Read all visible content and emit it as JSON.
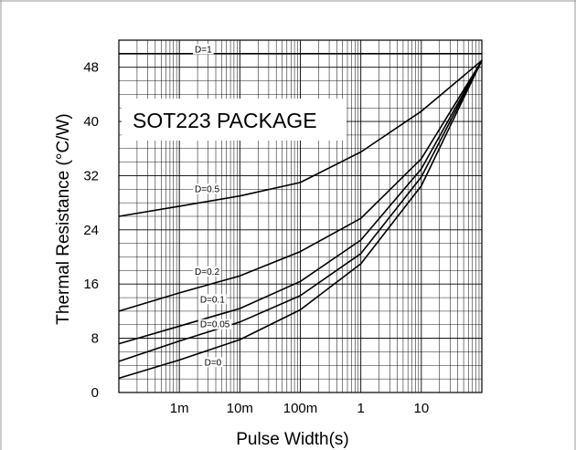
{
  "chart_data": {
    "type": "line",
    "title": "",
    "xlabel": "Pulse Width(s)",
    "ylabel": "Thermal Resistance (°C/W)",
    "x_scale": "log",
    "xlim": [
      0.0001,
      100
    ],
    "ylim": [
      0,
      52
    ],
    "grid": true,
    "annotation": "SOT223 PACKAGE",
    "x_ticks": [
      {
        "value": 0.001,
        "label": "1m"
      },
      {
        "value": 0.01,
        "label": "10m"
      },
      {
        "value": 0.1,
        "label": "100m"
      },
      {
        "value": 1,
        "label": "1"
      },
      {
        "value": 10,
        "label": "10"
      }
    ],
    "y_ticks": [
      {
        "value": 0,
        "label": "0"
      },
      {
        "value": 8,
        "label": "8"
      },
      {
        "value": 16,
        "label": "16"
      },
      {
        "value": 24,
        "label": "24"
      },
      {
        "value": 32,
        "label": "32"
      },
      {
        "value": 40,
        "label": "40"
      },
      {
        "value": 48,
        "label": "48"
      }
    ],
    "series": [
      {
        "name": "D=1",
        "x": [
          0.0001,
          100
        ],
        "y": [
          50,
          50
        ]
      },
      {
        "name": "D=0.5",
        "x": [
          0.0001,
          0.001,
          0.01,
          0.1,
          1,
          10,
          100
        ],
        "y": [
          26,
          27.5,
          29,
          31,
          35.5,
          41.5,
          49
        ]
      },
      {
        "name": "D=0.2",
        "x": [
          0.0001,
          0.001,
          0.01,
          0.1,
          1,
          10,
          100
        ],
        "y": [
          12,
          14.7,
          17.2,
          20.8,
          25.7,
          34.5,
          49
        ]
      },
      {
        "name": "D=0.1",
        "x": [
          0.0001,
          0.001,
          0.01,
          0.1,
          1,
          10,
          100
        ],
        "y": [
          7.2,
          9.8,
          12.4,
          16.4,
          22.5,
          33,
          49
        ]
      },
      {
        "name": "D=0.05",
        "x": [
          0.0001,
          0.001,
          0.01,
          0.1,
          1,
          10,
          100
        ],
        "y": [
          4.6,
          7.6,
          10.4,
          14.3,
          20.5,
          31.8,
          49
        ]
      },
      {
        "name": "D=0",
        "x": [
          0.0001,
          0.001,
          0.01,
          0.1,
          1,
          10,
          100
        ],
        "y": [
          2.1,
          4.8,
          7.8,
          12.2,
          19,
          30.5,
          49
        ]
      }
    ],
    "line_labels": [
      {
        "text": "D=1",
        "x": 0.0018,
        "y": 50.2
      },
      {
        "text": "D=0.5",
        "x": 0.0018,
        "y": 29.6
      },
      {
        "text": "D=0.2",
        "x": 0.0018,
        "y": 17.4
      },
      {
        "text": "D=0.1",
        "x": 0.0022,
        "y": 13.3
      },
      {
        "text": "D=0.05",
        "x": 0.0022,
        "y": 9.6
      },
      {
        "text": "D=0",
        "x": 0.0026,
        "y": 4.0
      }
    ]
  }
}
